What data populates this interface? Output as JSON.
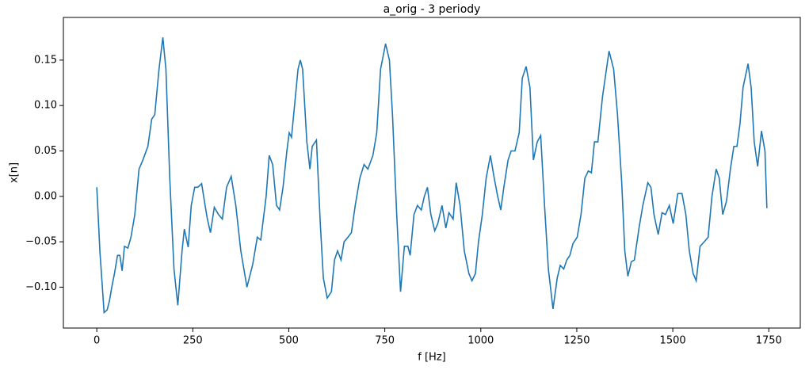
{
  "chart_data": {
    "type": "line",
    "title": "a_orig - 3 periody",
    "x_label": "f [Hz]",
    "y_label": "x[n]",
    "x": [
      0,
      8,
      19,
      27,
      33,
      39,
      46,
      54,
      60,
      66,
      72,
      81,
      89,
      99,
      110,
      120,
      133,
      143,
      151,
      162,
      172,
      180,
      190,
      201,
      211,
      222,
      228,
      238,
      246,
      255,
      263,
      273,
      282,
      288,
      296,
      306,
      317,
      327,
      338,
      350,
      362,
      375,
      391,
      406,
      418,
      427,
      441,
      449,
      458,
      468,
      476,
      485,
      495,
      501,
      507,
      515,
      524,
      530,
      536,
      547,
      555,
      561,
      572,
      582,
      590,
      600,
      611,
      619,
      627,
      636,
      644,
      654,
      663,
      673,
      685,
      696,
      706,
      719,
      729,
      739,
      752,
      762,
      770,
      781,
      791,
      801,
      810,
      816,
      826,
      835,
      845,
      853,
      861,
      870,
      880,
      888,
      899,
      909,
      917,
      928,
      936,
      946,
      957,
      969,
      977,
      986,
      994,
      1004,
      1014,
      1025,
      1035,
      1044,
      1052,
      1060,
      1071,
      1079,
      1089,
      1100,
      1108,
      1118,
      1128,
      1137,
      1147,
      1156,
      1166,
      1176,
      1188,
      1199,
      1207,
      1216,
      1224,
      1232,
      1240,
      1251,
      1261,
      1271,
      1280,
      1288,
      1296,
      1305,
      1317,
      1334,
      1346,
      1356,
      1367,
      1375,
      1383,
      1392,
      1400,
      1412,
      1422,
      1435,
      1443,
      1451,
      1462,
      1472,
      1481,
      1491,
      1501,
      1513,
      1524,
      1534,
      1543,
      1553,
      1561,
      1571,
      1582,
      1592,
      1602,
      1613,
      1621,
      1630,
      1640,
      1650,
      1659,
      1667,
      1675,
      1683,
      1696,
      1704,
      1712,
      1721,
      1731,
      1740,
      1745
    ],
    "series": [
      {
        "color": "#1f77b4",
        "values": [
          0.01,
          -0.06,
          -0.128,
          -0.125,
          -0.115,
          -0.1,
          -0.085,
          -0.065,
          -0.065,
          -0.082,
          -0.055,
          -0.057,
          -0.045,
          -0.02,
          0.03,
          0.04,
          0.055,
          0.085,
          0.09,
          0.14,
          0.175,
          0.14,
          0.02,
          -0.08,
          -0.12,
          -0.06,
          -0.036,
          -0.056,
          -0.01,
          0.01,
          0.01,
          0.014,
          -0.01,
          -0.025,
          -0.04,
          -0.012,
          -0.02,
          -0.025,
          0.01,
          0.022,
          -0.01,
          -0.06,
          -0.1,
          -0.075,
          -0.045,
          -0.048,
          0.0,
          0.045,
          0.035,
          -0.01,
          -0.015,
          0.01,
          0.05,
          0.07,
          0.065,
          0.1,
          0.14,
          0.15,
          0.14,
          0.06,
          0.03,
          0.055,
          0.062,
          -0.03,
          -0.09,
          -0.112,
          -0.105,
          -0.07,
          -0.06,
          -0.07,
          -0.05,
          -0.045,
          -0.04,
          -0.01,
          0.02,
          0.035,
          0.03,
          0.045,
          0.07,
          0.14,
          0.168,
          0.15,
          0.09,
          -0.02,
          -0.105,
          -0.055,
          -0.055,
          -0.065,
          -0.02,
          -0.01,
          -0.015,
          0.0,
          0.01,
          -0.02,
          -0.038,
          -0.03,
          -0.01,
          -0.035,
          -0.018,
          -0.025,
          0.015,
          -0.01,
          -0.06,
          -0.085,
          -0.093,
          -0.085,
          -0.05,
          -0.02,
          0.02,
          0.045,
          0.02,
          0.0,
          -0.015,
          0.01,
          0.04,
          0.05,
          0.05,
          0.07,
          0.13,
          0.143,
          0.12,
          0.04,
          0.06,
          0.067,
          -0.01,
          -0.08,
          -0.124,
          -0.09,
          -0.076,
          -0.08,
          -0.07,
          -0.065,
          -0.052,
          -0.045,
          -0.02,
          0.02,
          0.028,
          0.026,
          0.06,
          0.06,
          0.11,
          0.16,
          0.14,
          0.09,
          0.015,
          -0.06,
          -0.088,
          -0.072,
          -0.07,
          -0.035,
          -0.01,
          0.015,
          0.01,
          -0.02,
          -0.042,
          -0.018,
          -0.02,
          -0.01,
          -0.03,
          0.003,
          0.003,
          -0.02,
          -0.06,
          -0.085,
          -0.093,
          -0.055,
          -0.05,
          -0.045,
          0.0,
          0.03,
          0.02,
          -0.02,
          -0.005,
          0.03,
          0.055,
          0.055,
          0.08,
          0.12,
          0.146,
          0.12,
          0.06,
          0.033,
          0.072,
          0.05,
          -0.013
        ]
      }
    ],
    "xlim": [
      -87,
      1832
    ],
    "ylim": [
      -0.145,
      0.197
    ],
    "xticks": [
      0,
      250,
      500,
      750,
      1000,
      1250,
      1500,
      1750
    ],
    "yticks": [
      {
        "value": -0.1,
        "label": "−0.10"
      },
      {
        "value": -0.05,
        "label": "−0.05"
      },
      {
        "value": 0,
        "label": "0.00"
      },
      0.05,
      {
        "value": 0.1,
        "label": "0.10"
      },
      0.15
    ]
  }
}
